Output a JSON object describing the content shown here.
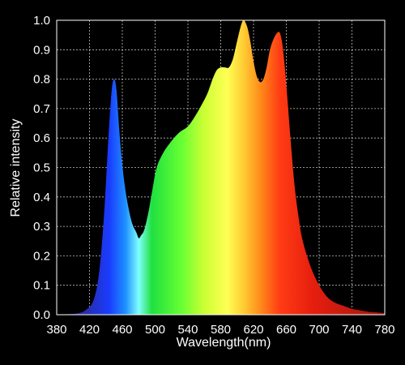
{
  "chart_data": {
    "type": "area",
    "xlabel": "Wavelength(nm)",
    "ylabel": "Relative intensity",
    "xlim": [
      380,
      780
    ],
    "ylim": [
      0,
      1.0
    ],
    "x_ticks": [
      380,
      420,
      460,
      500,
      540,
      580,
      620,
      660,
      700,
      740,
      780
    ],
    "y_ticks": [
      0.0,
      0.1,
      0.2,
      0.3,
      0.4,
      0.5,
      0.6,
      0.7,
      0.8,
      0.9,
      1.0
    ],
    "y_tick_labels": [
      "0.0",
      "0.1",
      "0.2",
      "0.3",
      "0.4",
      "0.5",
      "0.6",
      "0.7",
      "0.8",
      "0.9",
      "1.0"
    ],
    "grid": true,
    "fill": "visible-spectrum gradient",
    "background_color": "#000000",
    "x": [
      380,
      395,
      405,
      415,
      425,
      432,
      438,
      443,
      447,
      450,
      453,
      457,
      462,
      467,
      472,
      477,
      480,
      483,
      487,
      492,
      497,
      502,
      510,
      520,
      530,
      540,
      550,
      560,
      565,
      570,
      575,
      580,
      585,
      590,
      595,
      600,
      605,
      608,
      612,
      616,
      620,
      624,
      628,
      632,
      636,
      640,
      645,
      650,
      653,
      656,
      660,
      665,
      670,
      675,
      680,
      690,
      700,
      710,
      720,
      730,
      740,
      750,
      760,
      770,
      780
    ],
    "y": [
      0.0,
      0.002,
      0.005,
      0.015,
      0.05,
      0.15,
      0.35,
      0.6,
      0.76,
      0.8,
      0.76,
      0.6,
      0.46,
      0.37,
      0.31,
      0.28,
      0.26,
      0.27,
      0.29,
      0.35,
      0.43,
      0.5,
      0.55,
      0.59,
      0.62,
      0.64,
      0.68,
      0.73,
      0.76,
      0.8,
      0.83,
      0.84,
      0.84,
      0.84,
      0.87,
      0.93,
      0.985,
      1.0,
      0.98,
      0.93,
      0.86,
      0.81,
      0.79,
      0.8,
      0.84,
      0.9,
      0.94,
      0.96,
      0.95,
      0.9,
      0.78,
      0.6,
      0.44,
      0.33,
      0.25,
      0.16,
      0.1,
      0.06,
      0.04,
      0.03,
      0.02,
      0.015,
      0.01,
      0.008,
      0.005
    ]
  }
}
